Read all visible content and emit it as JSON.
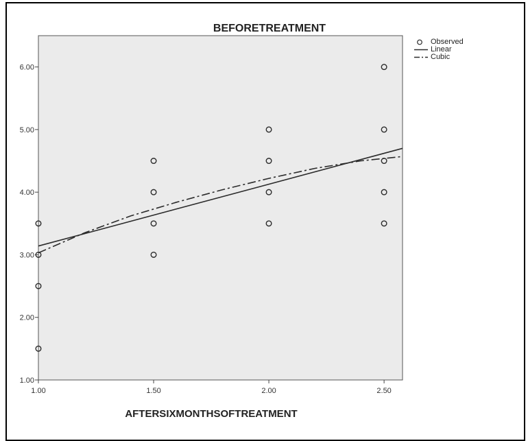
{
  "chart_data": {
    "type": "scatter",
    "title": "BEFORETREATMENT",
    "xlabel": "AFTERSIXMONTHSOFTREATMENT",
    "ylabel": "",
    "xlim": [
      1.0,
      2.58
    ],
    "ylim": [
      1.0,
      6.5
    ],
    "x_ticks": [
      "1.00",
      "1.50",
      "2.00",
      "2.50"
    ],
    "y_ticks": [
      "1.00",
      "2.00",
      "3.00",
      "4.00",
      "5.00",
      "6.00"
    ],
    "legend_position": "right-top",
    "grid": false,
    "series": [
      {
        "name": "Observed",
        "kind": "points",
        "points": [
          {
            "x": 1.0,
            "y": 1.5
          },
          {
            "x": 1.0,
            "y": 2.5
          },
          {
            "x": 1.0,
            "y": 3.0
          },
          {
            "x": 1.0,
            "y": 3.5
          },
          {
            "x": 1.5,
            "y": 3.0
          },
          {
            "x": 1.5,
            "y": 3.5
          },
          {
            "x": 1.5,
            "y": 4.0
          },
          {
            "x": 1.5,
            "y": 4.5
          },
          {
            "x": 2.0,
            "y": 3.5
          },
          {
            "x": 2.0,
            "y": 4.0
          },
          {
            "x": 2.0,
            "y": 4.5
          },
          {
            "x": 2.0,
            "y": 5.0
          },
          {
            "x": 2.5,
            "y": 3.5
          },
          {
            "x": 2.5,
            "y": 4.0
          },
          {
            "x": 2.5,
            "y": 4.5
          },
          {
            "x": 2.5,
            "y": 5.0
          },
          {
            "x": 2.5,
            "y": 6.0
          }
        ]
      },
      {
        "name": "Linear",
        "kind": "line",
        "points": [
          {
            "x": 1.0,
            "y": 3.14
          },
          {
            "x": 2.58,
            "y": 4.7
          }
        ]
      },
      {
        "name": "Cubic",
        "kind": "dashdot",
        "points": [
          {
            "x": 1.0,
            "y": 3.03
          },
          {
            "x": 1.2,
            "y": 3.35
          },
          {
            "x": 1.4,
            "y": 3.62
          },
          {
            "x": 1.6,
            "y": 3.84
          },
          {
            "x": 1.8,
            "y": 4.04
          },
          {
            "x": 2.0,
            "y": 4.22
          },
          {
            "x": 2.2,
            "y": 4.38
          },
          {
            "x": 2.4,
            "y": 4.5
          },
          {
            "x": 2.58,
            "y": 4.57
          }
        ]
      }
    ]
  },
  "colors": {
    "plot_background": "#ebebeb",
    "marks": "#2b2b2b"
  }
}
